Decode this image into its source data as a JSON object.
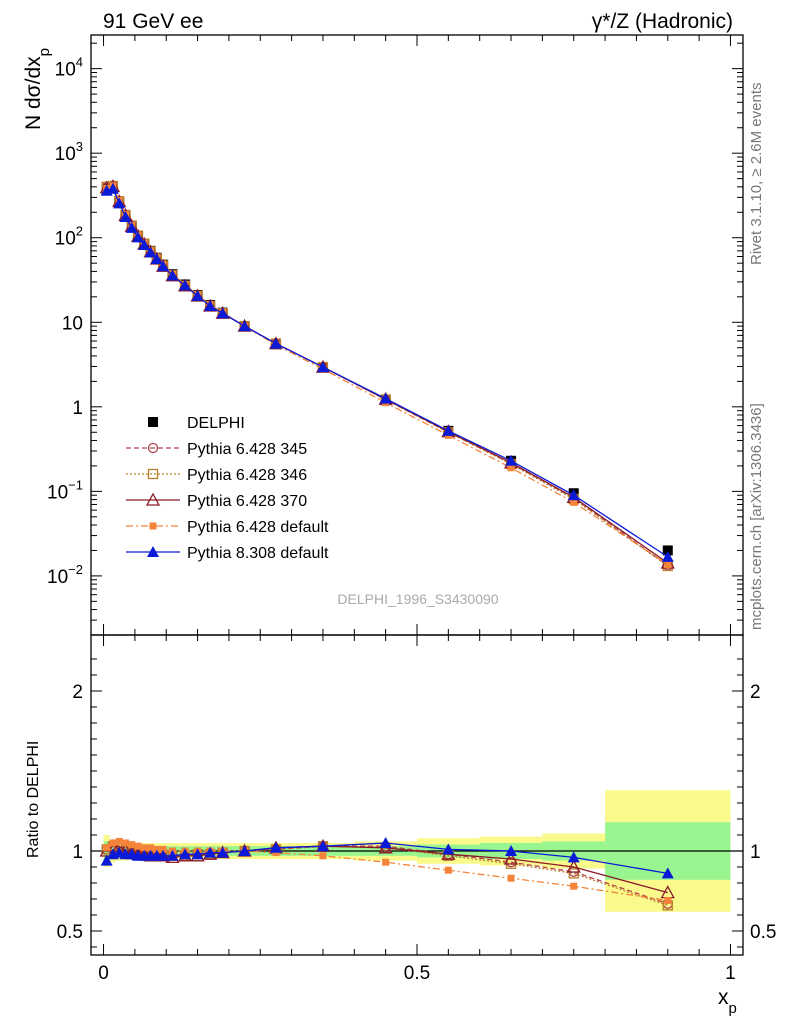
{
  "header": {
    "left_title": "91 GeV ee",
    "right_title": "γ*/Z (Hadronic)"
  },
  "side_labels": {
    "rivet": "Rivet 3.1.10, ≥ 2.6M events",
    "mcplots": "mcplots.cern.ch [arXiv:1306.3436]"
  },
  "watermark": "DELPHI_1996_S3430090",
  "colors": {
    "delphi": "#000000",
    "p345": "#b5444f",
    "p346": "#b8802a",
    "p370": "#8b1a2a",
    "p6def": "#f5843a",
    "p8def": "#0a1ad6",
    "band_inner": "#99f58f",
    "band_outer": "#fafa8c"
  },
  "chart_data": [
    {
      "type": "scatter",
      "title": "",
      "ylabel": "N dσ/dx_p",
      "yscale": "log",
      "ylim": [
        0.002,
        25000
      ],
      "xlim": [
        -0.02,
        1.02
      ],
      "y_tick_labels": [
        "10^-2",
        "10^-1",
        "1",
        "10",
        "10^2",
        "10^3",
        "10^4"
      ],
      "legend": [
        "DELPHI",
        "Pythia 6.428 345",
        "Pythia 6.428 346",
        "Pythia 6.428 370",
        "Pythia 6.428 default",
        "Pythia 8.308 default"
      ],
      "x": [
        0.005,
        0.015,
        0.025,
        0.035,
        0.045,
        0.055,
        0.065,
        0.075,
        0.085,
        0.095,
        0.11,
        0.13,
        0.15,
        0.17,
        0.19,
        0.225,
        0.275,
        0.35,
        0.45,
        0.55,
        0.65,
        0.75,
        0.9
      ],
      "series": [
        {
          "name": "DELPHI",
          "values": [
            380,
            390,
            260,
            180,
            135,
            105,
            85,
            70,
            58,
            48,
            37,
            28,
            21,
            16,
            13,
            9.0,
            5.5,
            2.9,
            1.2,
            0.52,
            0.23,
            0.095,
            0.02
          ]
        },
        {
          "name": "Pythia 6.428 345",
          "values": [
            400,
            410,
            270,
            186,
            139,
            106,
            85,
            69,
            57,
            47,
            36,
            27,
            20.5,
            15.6,
            12.8,
            9.0,
            5.6,
            2.95,
            1.22,
            0.5,
            0.215,
            0.083,
            0.0133
          ]
        },
        {
          "name": "Pythia 6.428 346",
          "values": [
            400,
            410,
            270,
            186,
            139,
            106,
            85,
            69,
            57,
            47,
            36,
            27,
            20.5,
            15.6,
            12.8,
            9.0,
            5.6,
            2.95,
            1.22,
            0.5,
            0.21,
            0.081,
            0.0131
          ]
        },
        {
          "name": "Pythia 6.428 370",
          "values": [
            390,
            405,
            268,
            184,
            137,
            104,
            84,
            68,
            56,
            46,
            35.5,
            27,
            20.5,
            15.6,
            12.8,
            9.0,
            5.6,
            2.95,
            1.23,
            0.51,
            0.218,
            0.085,
            0.0142
          ]
        },
        {
          "name": "Pythia 6.428 default",
          "values": [
            385,
            410,
            275,
            188,
            140,
            107,
            86,
            70,
            58,
            48,
            37,
            28,
            21,
            16,
            13,
            9.0,
            5.4,
            2.8,
            1.12,
            0.46,
            0.19,
            0.074,
            0.0136
          ]
        },
        {
          "name": "Pythia 8.308 default",
          "values": [
            360,
            380,
            255,
            176,
            131,
            101,
            82,
            67,
            56,
            46,
            35.8,
            27.3,
            20.5,
            15.6,
            12.8,
            9.0,
            5.6,
            2.95,
            1.25,
            0.52,
            0.23,
            0.09,
            0.0168
          ]
        }
      ]
    },
    {
      "type": "scatter",
      "ylabel": "Ratio to DELPHI",
      "xlabel": "x_p",
      "ylim": [
        0.35,
        2.35
      ],
      "xlim": [
        -0.02,
        1.02
      ],
      "y_tick_labels": [
        "0.5",
        "1",
        "2"
      ],
      "x_tick_labels": [
        "0",
        "0.5",
        "1"
      ],
      "x": [
        0.005,
        0.015,
        0.025,
        0.035,
        0.045,
        0.055,
        0.065,
        0.075,
        0.085,
        0.095,
        0.11,
        0.13,
        0.15,
        0.17,
        0.19,
        0.225,
        0.275,
        0.35,
        0.45,
        0.55,
        0.65,
        0.75,
        0.9
      ],
      "series": [
        {
          "name": "Pythia 6.428 345",
          "values": [
            1.01,
            1.03,
            1.02,
            1.0,
            0.99,
            0.98,
            0.98,
            0.97,
            0.97,
            0.97,
            0.97,
            0.97,
            0.98,
            0.98,
            0.99,
            1.0,
            1.01,
            1.03,
            1.03,
            0.98,
            0.93,
            0.87,
            0.67
          ]
        },
        {
          "name": "Pythia 6.428 346",
          "values": [
            1.01,
            1.03,
            1.02,
            1.0,
            0.99,
            0.98,
            0.98,
            0.97,
            0.97,
            0.97,
            0.97,
            0.97,
            0.98,
            0.98,
            0.99,
            1.0,
            1.01,
            1.03,
            1.02,
            0.97,
            0.92,
            0.86,
            0.66
          ]
        },
        {
          "name": "Pythia 6.428 370",
          "values": [
            1.0,
            1.03,
            1.03,
            1.0,
            0.99,
            0.98,
            0.98,
            0.97,
            0.97,
            0.97,
            0.96,
            0.97,
            0.97,
            0.98,
            0.99,
            1.0,
            1.02,
            1.03,
            1.02,
            0.98,
            0.95,
            0.9,
            0.74
          ]
        },
        {
          "name": "Pythia 6.428 default",
          "values": [
            1.02,
            1.05,
            1.06,
            1.05,
            1.04,
            1.03,
            1.02,
            1.02,
            1.01,
            1.01,
            1.0,
            1.0,
            1.0,
            1.0,
            1.0,
            1.0,
            0.99,
            0.97,
            0.93,
            0.88,
            0.83,
            0.78,
            0.69
          ]
        },
        {
          "name": "Pythia 8.308 default",
          "values": [
            0.94,
            0.98,
            0.99,
            0.98,
            0.98,
            0.97,
            0.97,
            0.97,
            0.97,
            0.97,
            0.97,
            0.98,
            0.98,
            0.99,
            0.99,
            1.0,
            1.02,
            1.03,
            1.05,
            1.01,
            1.0,
            0.96,
            0.86
          ]
        }
      ],
      "uncertainty_band": {
        "x_edges": [
          0.0,
          0.01,
          0.02,
          0.03,
          0.04,
          0.05,
          0.06,
          0.07,
          0.08,
          0.09,
          0.1,
          0.12,
          0.14,
          0.16,
          0.18,
          0.2,
          0.25,
          0.3,
          0.4,
          0.5,
          0.6,
          0.7,
          0.8,
          1.0
        ],
        "inner": [
          0.06,
          0.04,
          0.03,
          0.03,
          0.03,
          0.03,
          0.03,
          0.03,
          0.03,
          0.03,
          0.03,
          0.03,
          0.03,
          0.03,
          0.03,
          0.03,
          0.03,
          0.03,
          0.03,
          0.04,
          0.05,
          0.06,
          0.18
        ],
        "outer": [
          0.1,
          0.07,
          0.06,
          0.06,
          0.05,
          0.05,
          0.05,
          0.05,
          0.05,
          0.05,
          0.05,
          0.05,
          0.05,
          0.05,
          0.05,
          0.05,
          0.05,
          0.05,
          0.06,
          0.08,
          0.09,
          0.11,
          0.38
        ]
      }
    }
  ]
}
